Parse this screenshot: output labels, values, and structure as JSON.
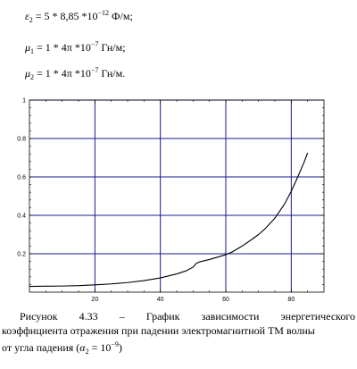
{
  "formulas": [
    {
      "symbol": "ε",
      "sub": "2",
      "expr": " = 5 * 8,85 *10",
      "exp": "−12",
      "unit": " Ф/м;"
    },
    {
      "symbol": "μ",
      "sub": "1",
      "expr": " = 1 * 4π *10",
      "exp": "−7",
      "unit": " Гн/м;"
    },
    {
      "symbol": "μ",
      "sub": "2",
      "expr": " = 1 * 4π *10",
      "exp": "−7",
      "unit": " Гн/м."
    }
  ],
  "caption": {
    "line1": "Рисунок 4.33 – График зависимости энергетического",
    "line2": "коэффициента отражения при падении электромагнитной ТМ волны",
    "line3_text": "от угла падения (",
    "symbol": "α",
    "sub": "2",
    "eq": " = 10",
    "exp": "−9",
    "close": ")"
  },
  "chart_data": {
    "type": "line",
    "xlim": [
      0,
      90
    ],
    "ylim": [
      0,
      1
    ],
    "xticks": [
      20,
      40,
      60,
      80
    ],
    "yticks": [
      0.2,
      0.4,
      0.6,
      0.8,
      1
    ],
    "xtick_labels": [
      "20",
      "40",
      "60",
      "80"
    ],
    "ytick_labels": [
      "0.2",
      "0.4",
      "0.6",
      "0.8",
      "1"
    ],
    "grid": true,
    "line_color": "#000000",
    "grid_color": "#1a1a8c",
    "series": [
      {
        "x": [
          0,
          5,
          10,
          15,
          20,
          25,
          30,
          35,
          40,
          45,
          48,
          50,
          51,
          52,
          55,
          60,
          62,
          65,
          68,
          70,
          72,
          75,
          78,
          80,
          82,
          84,
          85
        ],
        "y": [
          0.03,
          0.031,
          0.032,
          0.034,
          0.038,
          0.043,
          0.05,
          0.06,
          0.074,
          0.095,
          0.112,
          0.13,
          0.15,
          0.158,
          0.17,
          0.195,
          0.21,
          0.24,
          0.275,
          0.3,
          0.33,
          0.385,
          0.46,
          0.525,
          0.6,
          0.68,
          0.725
        ]
      }
    ]
  }
}
